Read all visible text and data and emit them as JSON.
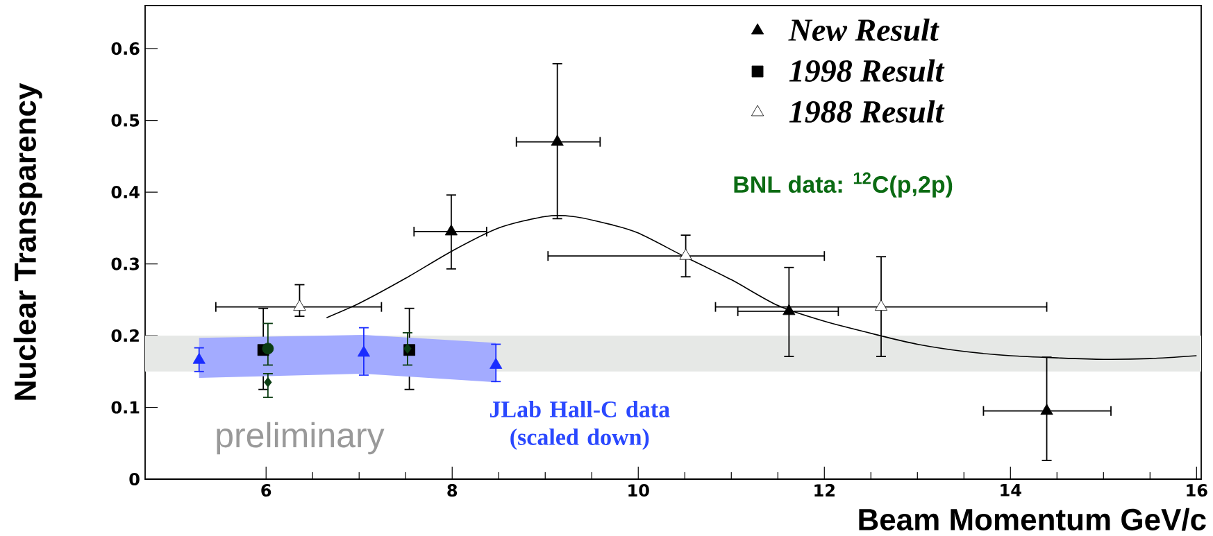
{
  "chart_data": {
    "type": "scatter",
    "xlabel": "Beam Momentum GeV/c",
    "ylabel": "Nuclear Transparency",
    "xlim": [
      4.7,
      16.05
    ],
    "ylim": [
      0,
      0.66
    ],
    "xticks": [
      6,
      8,
      10,
      12,
      14,
      16
    ],
    "yticks": [
      0,
      0.1,
      0.2,
      0.3,
      0.4,
      0.5,
      0.6
    ],
    "grid": false,
    "legend": "top right",
    "series": [
      {
        "name": "New Result",
        "marker": "triangle",
        "color": "#000000",
        "x": [
          7.99,
          9.13,
          11.62,
          14.39
        ],
        "values": [
          0.345,
          0.47,
          0.234,
          0.095
        ],
        "errors": [
          [
            0.293,
            0.396
          ],
          [
            0.363,
            0.579
          ],
          [
            0.171,
            0.295
          ],
          [
            0.026,
            0.17
          ]
        ],
        "xerrors": [
          [
            7.59,
            8.37
          ],
          [
            8.69,
            9.59
          ],
          [
            11.07,
            12.15
          ],
          [
            13.71,
            15.08
          ]
        ]
      },
      {
        "name": "1998 Result",
        "marker": "square",
        "color": "#000000",
        "x": [
          5.97,
          7.54
        ],
        "values": [
          0.18,
          0.18
        ],
        "errors": [
          [
            0.125,
            0.238
          ],
          [
            0.125,
            0.238
          ]
        ]
      },
      {
        "name": "1988 Result",
        "marker": "triangle",
        "color": "#ffffff",
        "x": [
          6.36,
          10.51,
          12.61
        ],
        "values": [
          0.24,
          0.311,
          0.24
        ],
        "errors": [
          [
            0.227,
            0.271
          ],
          [
            0.282,
            0.34
          ],
          [
            0.171,
            0.31
          ]
        ],
        "xerrors": [
          [
            5.46,
            7.24
          ],
          [
            9.03,
            12.0
          ],
          [
            10.83,
            14.39
          ]
        ]
      },
      {
        "type": "line",
        "marker": "none",
        "color": "#000000",
        "x": [
          6.65,
          7.0,
          7.5,
          8.0,
          8.5,
          9.0,
          9.3,
          9.7,
          10.0,
          10.5,
          11.0,
          11.5,
          12.0,
          12.6,
          13.0,
          13.5,
          14.0,
          14.5,
          15.0,
          15.5,
          16.0
        ],
        "values": [
          0.225,
          0.245,
          0.28,
          0.318,
          0.35,
          0.366,
          0.366,
          0.355,
          0.343,
          0.31,
          0.278,
          0.242,
          0.22,
          0.2,
          0.188,
          0.178,
          0.172,
          0.169,
          0.167,
          0.168,
          0.172
        ]
      },
      {
        "marker": "triangle",
        "color": "#1a2cff",
        "x": [
          5.28,
          7.05,
          8.47
        ],
        "values": [
          0.166,
          0.176,
          0.159
        ],
        "errors": [
          [
            0.15,
            0.183
          ],
          [
            0.145,
            0.211
          ],
          [
            0.136,
            0.188
          ]
        ],
        "lower": [
          0.141,
          0.147,
          0.135
        ],
        "upper": [
          0.197,
          0.201,
          0.19
        ]
      },
      {
        "marker": "circle",
        "color": "#0b3d12",
        "x": [
          6.02
        ],
        "values": [
          0.182
        ],
        "errors": [
          [
            0.159,
            0.217
          ]
        ]
      },
      {
        "marker": "diamond",
        "color": "#0b3d12",
        "x": [
          6.02,
          7.52
        ],
        "values": [
          0.135,
          0.182
        ],
        "errors": [
          [
            0.114,
            0.147
          ],
          [
            0.159,
            0.204
          ]
        ]
      }
    ],
    "bands": [
      {
        "axis": "y",
        "from": 0.15,
        "to": 0.2,
        "color": "#e6e8e6"
      }
    ],
    "annotations": [
      "BNL data: $^{12}$C(p,2p)",
      "JLab Hall-C data (scaled down)",
      "preliminary"
    ]
  }
}
